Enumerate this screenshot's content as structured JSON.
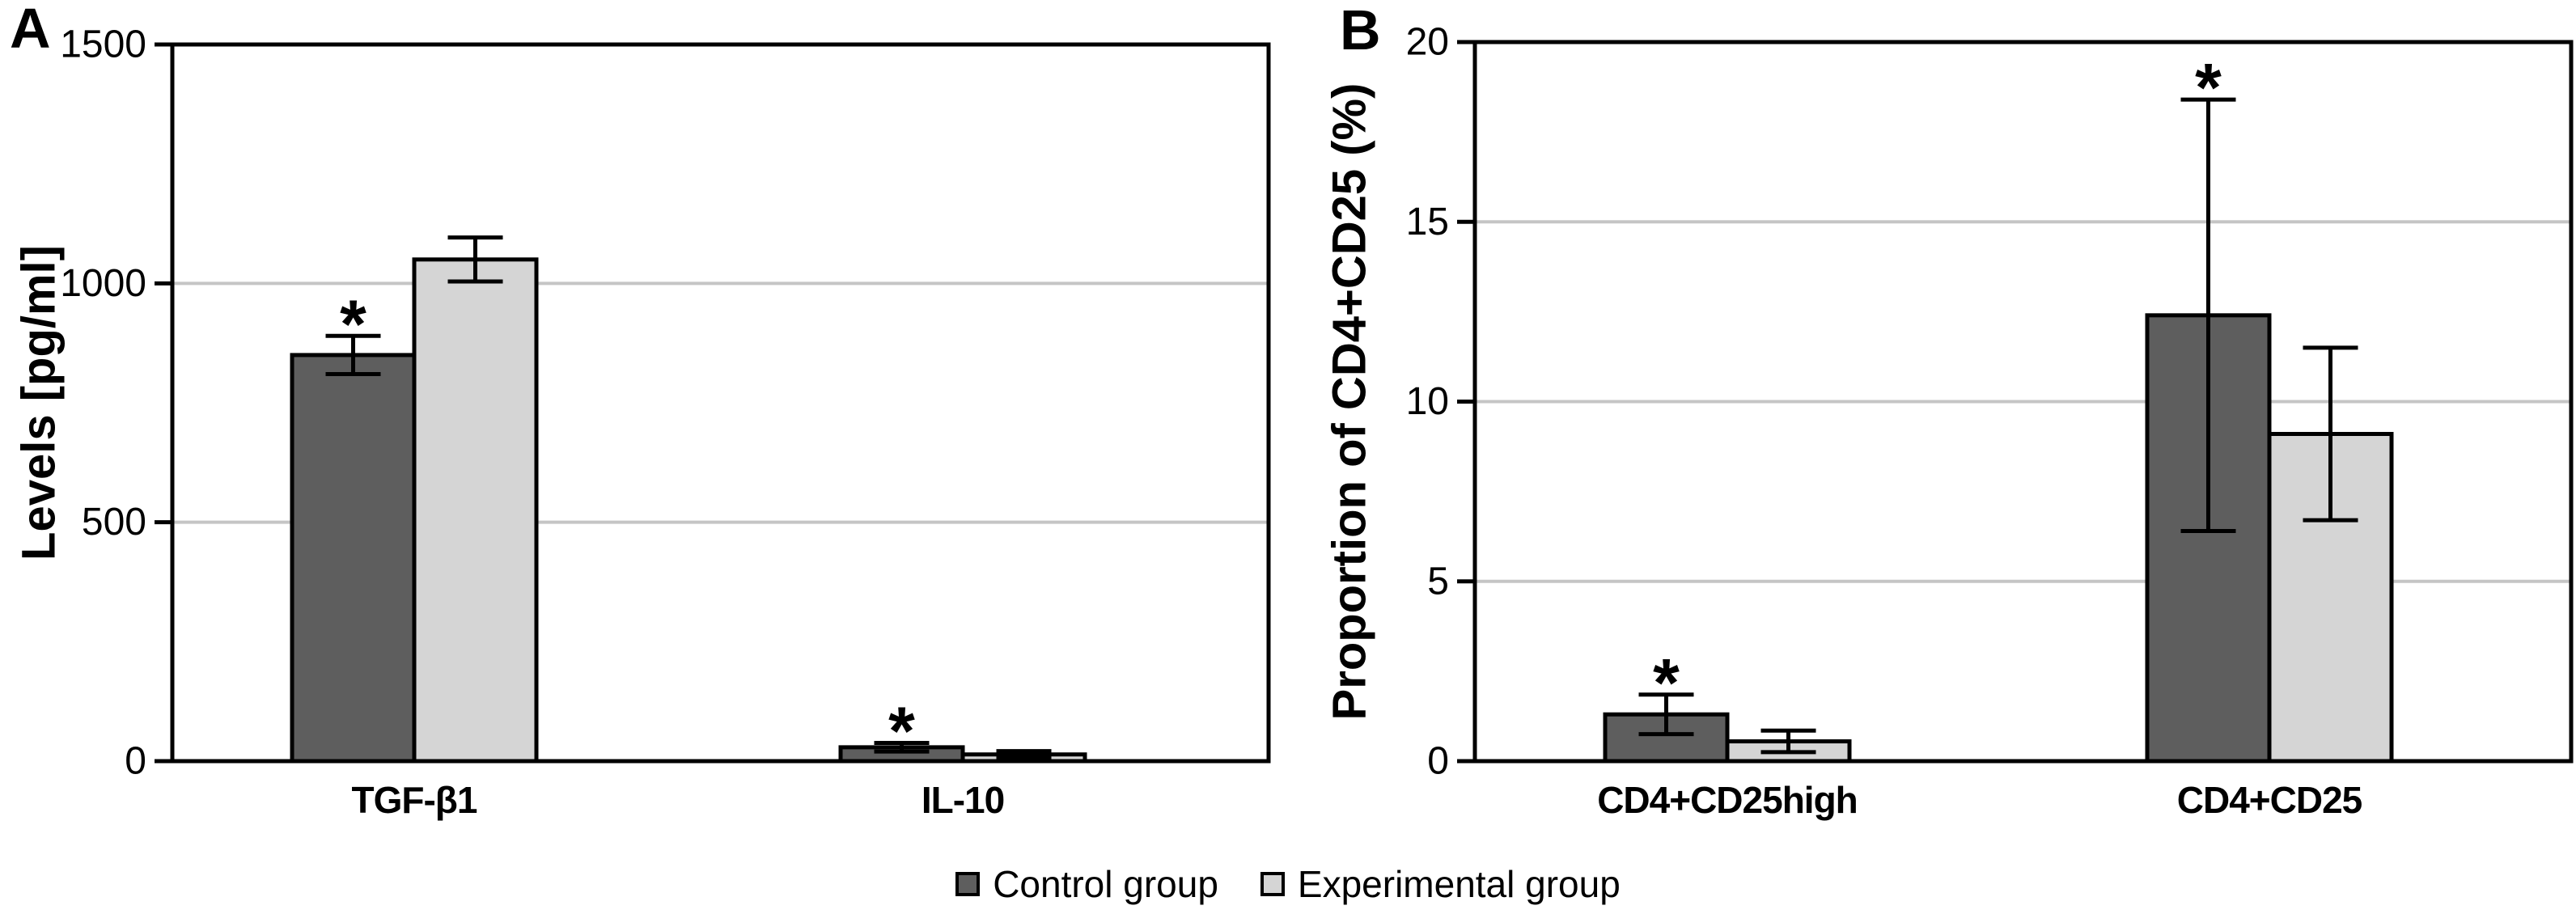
{
  "figure": {
    "background": "#ffffff",
    "gridline_color": "#c5c5c5",
    "axis_color": "#000000"
  },
  "chart_data": [
    {
      "type": "bar",
      "panel": "A",
      "title": "",
      "xlabel": "",
      "ylabel": "Levels [pg/ml]",
      "ylim": [
        0,
        1500
      ],
      "yticks": [
        0,
        500,
        1000,
        1500
      ],
      "grid": true,
      "legend_position": "bottom",
      "categories": [
        "TGF-β1",
        "IL-10"
      ],
      "series": [
        {
          "name": "Control group",
          "color": "#5e5e5e",
          "values": [
            850,
            29
          ],
          "errors": [
            40,
            9
          ],
          "significance": [
            "*",
            "*"
          ]
        },
        {
          "name": "Experimental group",
          "color": "#d5d5d5",
          "values": [
            1050,
            14
          ],
          "errors": [
            46,
            7
          ],
          "significance": [
            "",
            ""
          ]
        }
      ]
    },
    {
      "type": "bar",
      "panel": "B",
      "title": "",
      "xlabel": "",
      "ylabel": "Proportion of CD4+CD25 (%)",
      "ylim": [
        0,
        20
      ],
      "yticks": [
        0,
        5,
        10,
        15,
        20
      ],
      "grid": true,
      "legend_position": "bottom",
      "categories": [
        "CD4+CD25high",
        "CD4+CD25"
      ],
      "series": [
        {
          "name": "Control group",
          "color": "#5e5e5e",
          "values": [
            1.3,
            12.4
          ],
          "errors": [
            0.55,
            6.0
          ],
          "significance": [
            "*",
            "*"
          ]
        },
        {
          "name": "Experimental group",
          "color": "#d5d5d5",
          "values": [
            0.55,
            9.1
          ],
          "errors": [
            0.3,
            2.4
          ],
          "significance": [
            "",
            ""
          ]
        }
      ]
    }
  ],
  "legend": {
    "items": [
      {
        "label": "Control group",
        "color": "#5e5e5e"
      },
      {
        "label": "Experimental group",
        "color": "#d5d5d5"
      }
    ]
  }
}
